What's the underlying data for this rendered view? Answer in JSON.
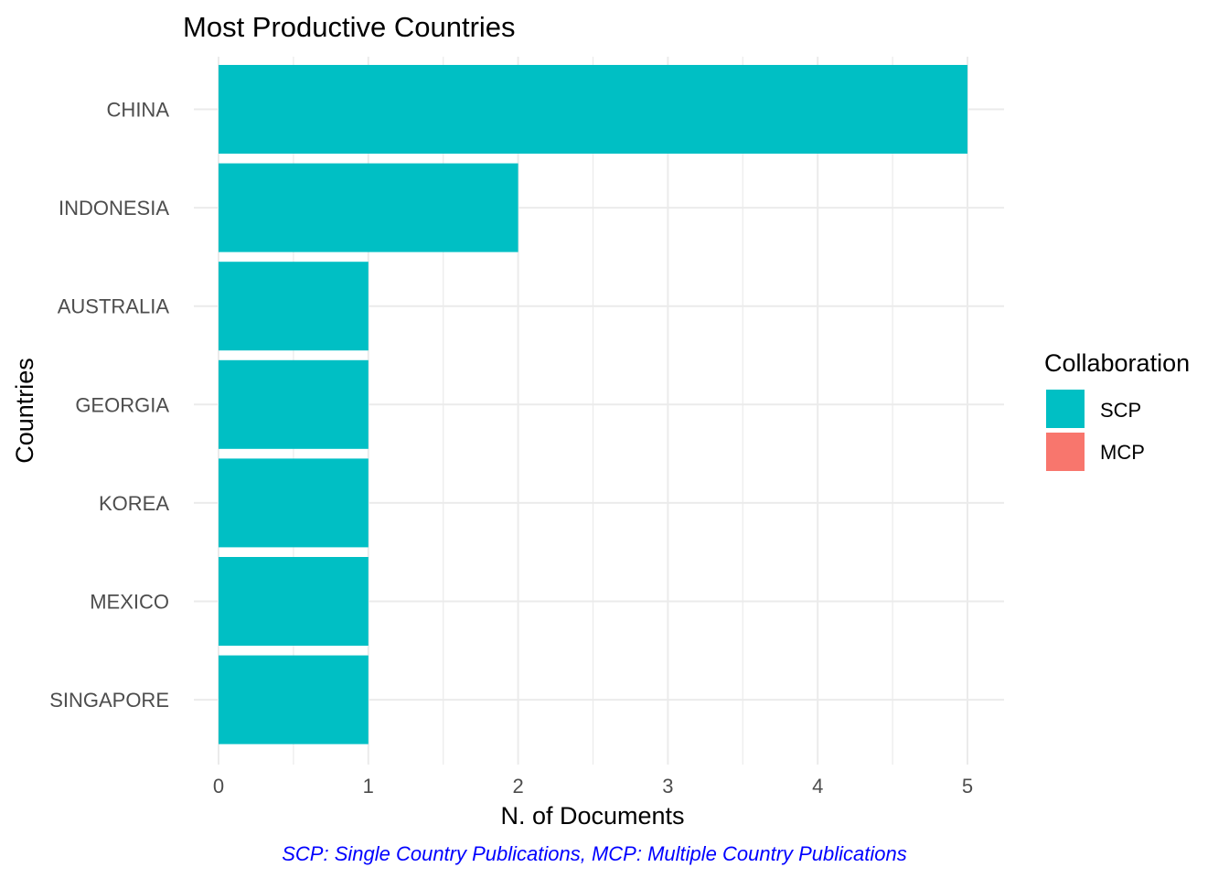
{
  "chart_data": {
    "type": "bar",
    "orientation": "horizontal",
    "title": "Most Productive Countries",
    "xlabel": "N. of Documents",
    "ylabel": "Countries",
    "caption": "SCP: Single Country Publications, MCP: Multiple Country Publications",
    "categories": [
      "CHINA",
      "INDONESIA",
      "AUSTRALIA",
      "GEORGIA",
      "KOREA",
      "MEXICO",
      "SINGAPORE"
    ],
    "series": [
      {
        "name": "SCP",
        "color": "#00BFC4",
        "values": [
          5,
          2,
          1,
          1,
          1,
          1,
          1
        ]
      },
      {
        "name": "MCP",
        "color": "#F8766D",
        "values": [
          0,
          0,
          0,
          0,
          0,
          0,
          0
        ]
      }
    ],
    "xlim": [
      0,
      5
    ],
    "xticks": [
      "0",
      "1",
      "2",
      "3",
      "4",
      "5"
    ],
    "grid": true,
    "legend": {
      "title": "Collaboration",
      "position": "right"
    },
    "colors": {
      "caption": "#0000FF",
      "grid": "#EBEBEB"
    }
  }
}
